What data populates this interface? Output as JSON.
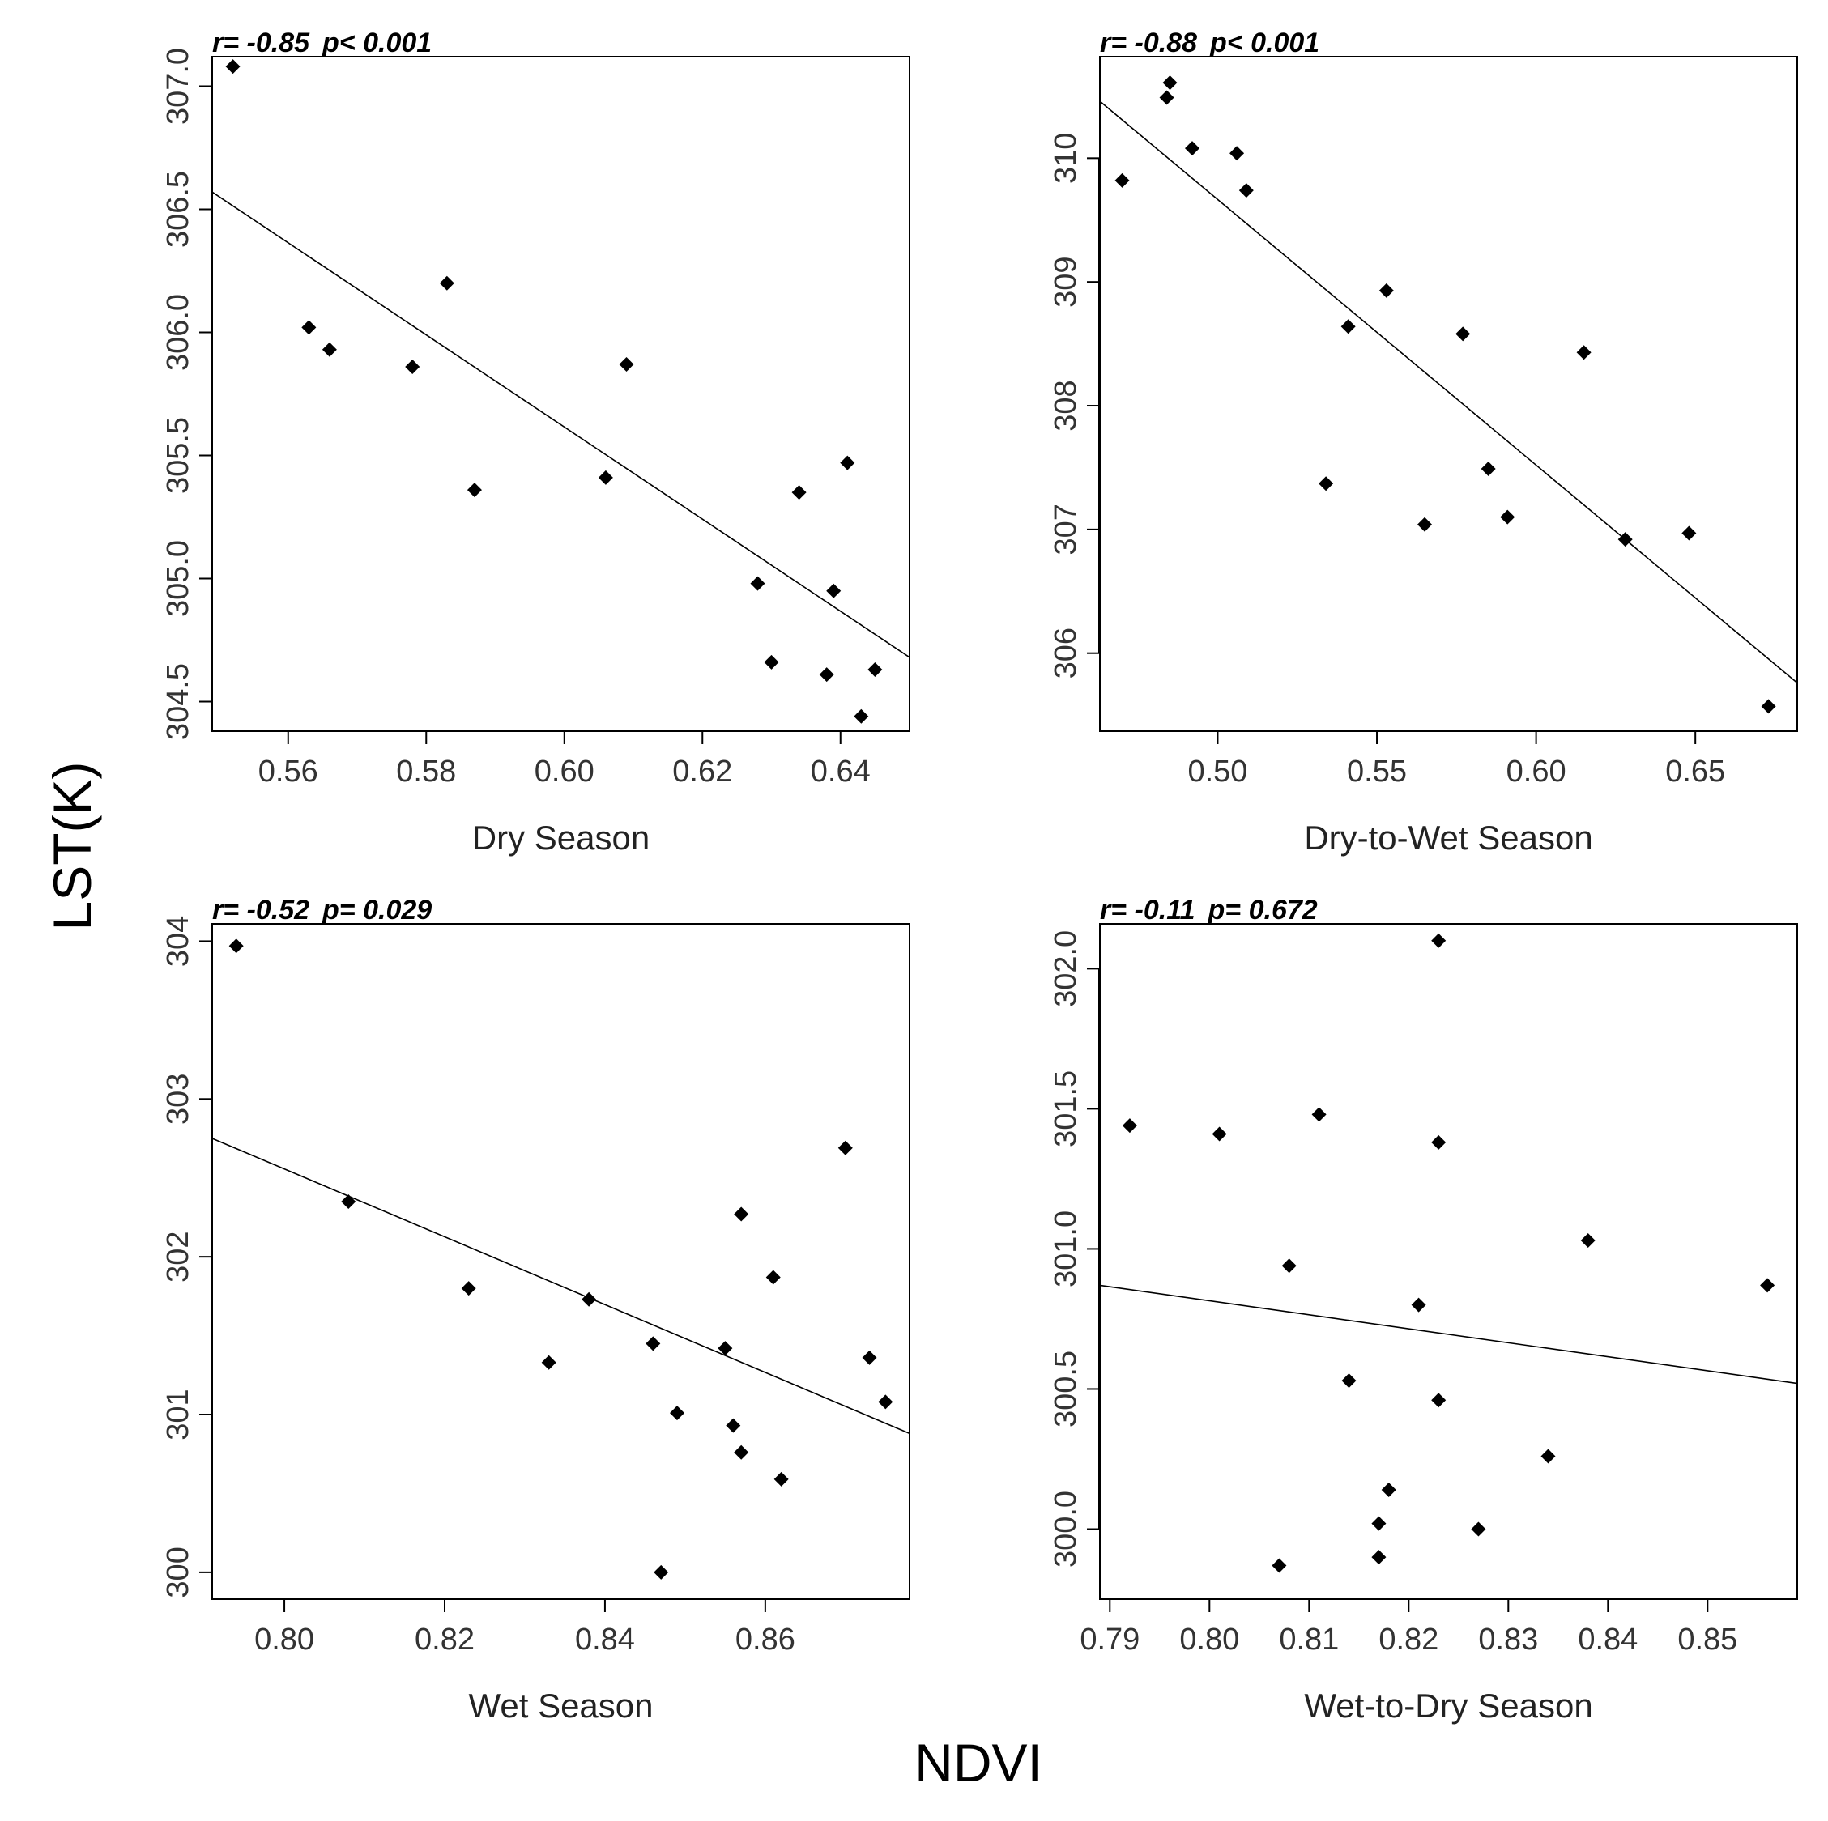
{
  "y_axis_label": "LST(K)",
  "x_axis_label": "NDVI",
  "chart_data": [
    {
      "type": "scatter",
      "xlabel": "Dry Season",
      "stat_r": "r= -0.85",
      "stat_p": "p< 0.001",
      "xlim": [
        0.549,
        0.65
      ],
      "ylim": [
        304.38,
        307.12
      ],
      "xticks": [
        "0.56",
        "0.58",
        "0.60",
        "0.62",
        "0.64"
      ],
      "yticks": [
        "304.5",
        "305.0",
        "305.5",
        "306.0",
        "306.5",
        "307.0"
      ],
      "x": [
        0.552,
        0.563,
        0.566,
        0.578,
        0.583,
        0.587,
        0.606,
        0.609,
        0.628,
        0.63,
        0.634,
        0.639,
        0.641,
        0.638,
        0.645,
        0.643
      ],
      "y": [
        307.08,
        306.02,
        305.93,
        305.86,
        306.2,
        305.36,
        305.41,
        305.87,
        304.98,
        304.66,
        305.35,
        304.95,
        305.47,
        304.61,
        304.63,
        304.44
      ],
      "fit": {
        "x": [
          0.549,
          0.65
        ],
        "y": [
          306.57,
          304.68
        ]
      }
    },
    {
      "type": "scatter",
      "xlabel": "Dry-to-Wet Season",
      "stat_r": "r= -0.88",
      "stat_p": "p< 0.001",
      "xlim": [
        0.463,
        0.682
      ],
      "ylim": [
        305.37,
        310.82
      ],
      "xticks": [
        "0.50",
        "0.55",
        "0.60",
        "0.65"
      ],
      "yticks": [
        "306",
        "307",
        "308",
        "309",
        "310"
      ],
      "x": [
        0.47,
        0.484,
        0.485,
        0.492,
        0.506,
        0.509,
        0.534,
        0.541,
        0.553,
        0.565,
        0.577,
        0.585,
        0.591,
        0.615,
        0.628,
        0.648,
        0.673
      ],
      "y": [
        309.82,
        310.49,
        310.61,
        310.08,
        310.04,
        309.74,
        307.37,
        308.64,
        308.93,
        307.04,
        308.58,
        307.49,
        307.1,
        308.43,
        306.92,
        306.97,
        305.57
      ],
      "fit": {
        "x": [
          0.463,
          0.682
        ],
        "y": [
          310.46,
          305.76
        ]
      }
    },
    {
      "type": "scatter",
      "xlabel": "Wet Season",
      "stat_r": "r= -0.52",
      "stat_p": "p= 0.029",
      "xlim": [
        0.791,
        0.878
      ],
      "ylim": [
        299.83,
        304.11
      ],
      "xticks": [
        "0.80",
        "0.82",
        "0.84",
        "0.86"
      ],
      "yticks": [
        "300",
        "301",
        "302",
        "303",
        "304"
      ],
      "x": [
        0.794,
        0.808,
        0.823,
        0.833,
        0.838,
        0.846,
        0.849,
        0.847,
        0.855,
        0.857,
        0.856,
        0.857,
        0.861,
        0.862,
        0.87,
        0.873,
        0.875
      ],
      "y": [
        303.97,
        302.35,
        301.8,
        301.33,
        301.73,
        301.45,
        301.01,
        300.0,
        301.42,
        302.27,
        300.93,
        300.76,
        301.87,
        300.59,
        302.69,
        301.36,
        301.08
      ],
      "fit": {
        "x": [
          0.791,
          0.878
        ],
        "y": [
          302.75,
          300.88
        ]
      }
    },
    {
      "type": "scatter",
      "xlabel": "Wet-to-Dry Season",
      "stat_r": "r= -0.11",
      "stat_p": "p= 0.672",
      "xlim": [
        0.789,
        0.859
      ],
      "ylim": [
        299.75,
        302.16
      ],
      "xticks": [
        "0.79",
        "0.80",
        "0.81",
        "0.82",
        "0.83",
        "0.84",
        "0.85"
      ],
      "yticks": [
        "300.0",
        "300.5",
        "301.0",
        "301.5",
        "302.0"
      ],
      "x": [
        0.792,
        0.801,
        0.807,
        0.808,
        0.811,
        0.814,
        0.817,
        0.817,
        0.818,
        0.821,
        0.823,
        0.823,
        0.823,
        0.827,
        0.834,
        0.838,
        0.856
      ],
      "y": [
        301.44,
        301.41,
        299.87,
        300.94,
        301.48,
        300.53,
        300.02,
        299.9,
        300.14,
        300.8,
        302.1,
        301.38,
        300.46,
        300.0,
        300.26,
        301.03,
        300.87
      ],
      "fit": {
        "x": [
          0.789,
          0.859
        ],
        "y": [
          300.87,
          300.52
        ]
      }
    }
  ]
}
